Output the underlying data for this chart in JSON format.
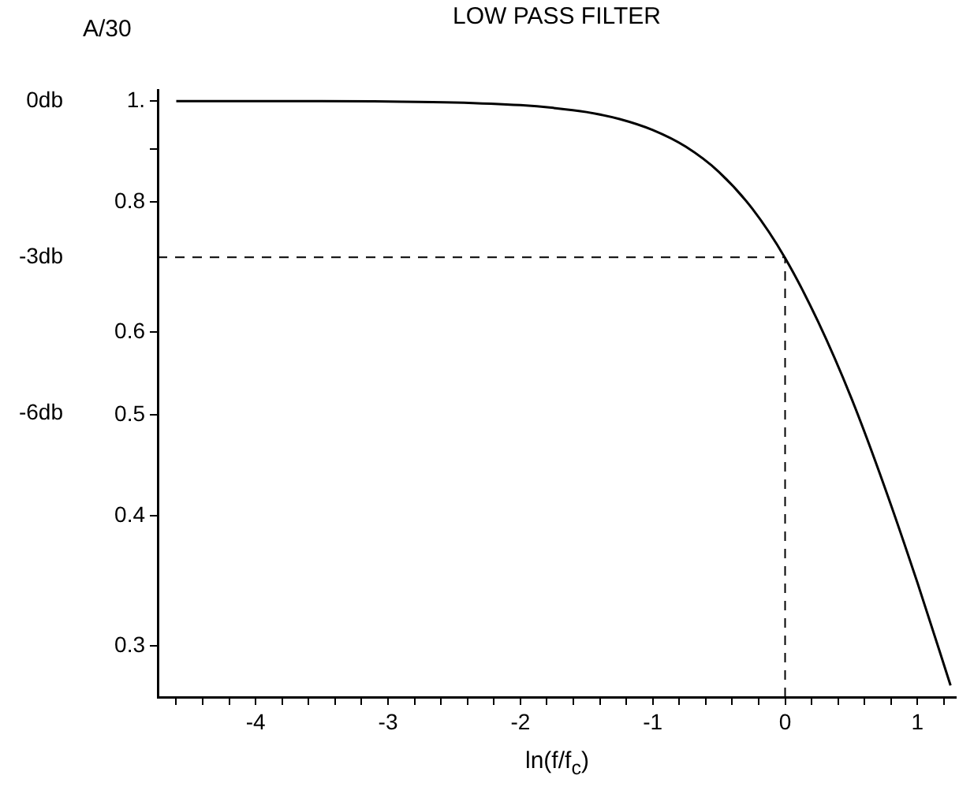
{
  "chart_data": {
    "type": "line",
    "title": "LOW PASS FILTER",
    "xlabel": "ln(f/f$_{c}$)",
    "ylabel": "A/30",
    "series": [
      {
        "color": "#000000",
        "x": [
          -4.6,
          -4,
          -3.5,
          -3,
          -2.5,
          -2,
          -1.75,
          -1.5,
          -1.25,
          -1,
          -0.75,
          -0.5,
          -0.25,
          0,
          0.25,
          0.5,
          0.75,
          1,
          1.25
        ],
        "values": [
          1.0,
          1.0,
          1.0,
          0.999,
          0.997,
          0.991,
          0.985,
          0.976,
          0.961,
          0.938,
          0.904,
          0.855,
          0.789,
          0.707,
          0.614,
          0.519,
          0.427,
          0.345,
          0.275
        ]
      }
    ],
    "log": "y",
    "xlim": [
      -4.74,
      1.29
    ],
    "ylim": [
      0.268,
      1.025
    ],
    "xticks": [
      {
        "value": -4.6,
        "label": null
      },
      {
        "value": -4.4,
        "label": null
      },
      {
        "value": -4.2,
        "label": null
      },
      -4,
      {
        "value": -3.8,
        "label": null
      },
      {
        "value": -3.6,
        "label": null
      },
      {
        "value": -3.4,
        "label": null
      },
      {
        "value": -3.2,
        "label": null
      },
      -3,
      {
        "value": -2.8,
        "label": null
      },
      {
        "value": -2.6,
        "label": null
      },
      {
        "value": -2.4,
        "label": null
      },
      {
        "value": -2.2,
        "label": null
      },
      -2,
      {
        "value": -1.8,
        "label": null
      },
      {
        "value": -1.6,
        "label": null
      },
      {
        "value": -1.4,
        "label": null
      },
      {
        "value": -1.2,
        "label": null
      },
      -1,
      {
        "value": -0.8,
        "label": null
      },
      {
        "value": -0.6,
        "label": null
      },
      {
        "value": -0.4,
        "label": null
      },
      {
        "value": -0.2,
        "label": null
      },
      0,
      {
        "value": 0.2,
        "label": null
      },
      {
        "value": 0.4,
        "label": null
      },
      {
        "value": 0.6,
        "label": null
      },
      {
        "value": 0.8,
        "label": null
      },
      1,
      {
        "value": 1.2,
        "label": null
      }
    ],
    "yticks": [
      0.3,
      0.4,
      0.5,
      0.6,
      0.8,
      {
        "value": 0.9,
        "label": null
      },
      {
        "value": 1,
        "label": "1."
      }
    ],
    "y2lim": [
      -11.44,
      0.214
    ],
    "y2ticks": [
      {
        "value": -6,
        "label": "-6db"
      },
      {
        "value": -3,
        "label": "-3db"
      },
      {
        "value": 0,
        "label": "0db"
      }
    ],
    "ref_lines": [
      {
        "axis": "y2",
        "value": -3,
        "line_style": "dashed"
      },
      {
        "axis": "x",
        "value": 0,
        "line_style": "dashed"
      }
    ],
    "grid": false,
    "legend": false,
    "marker": "none",
    "line_style": "solid"
  }
}
